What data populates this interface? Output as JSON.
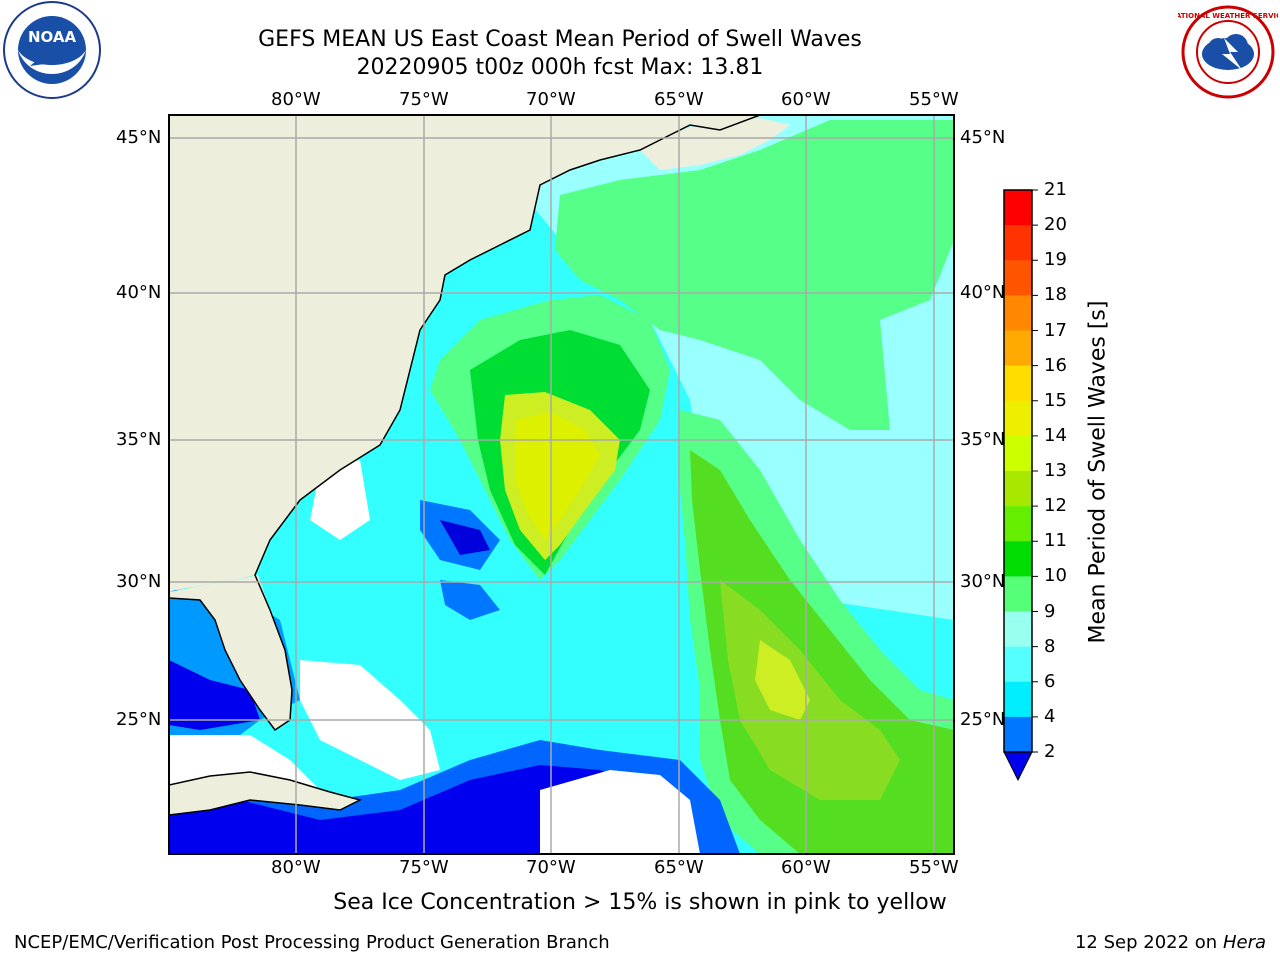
{
  "title_line1": "GEFS MEAN US East Coast Mean Period of Swell Waves",
  "title_line2": "20220905 t00z 000h fcst   Max: 13.81",
  "top_lon_labels": [
    "80°W",
    "75°W",
    "70°W",
    "65°W",
    "60°W",
    "55°W"
  ],
  "bottom_lon_labels": [
    "80°W",
    "75°W",
    "70°W",
    "65°W",
    "60°W",
    "55°W"
  ],
  "left_lat_labels": [
    "45°N",
    "40°N",
    "35°N",
    "30°N",
    "25°N"
  ],
  "right_lat_labels": [
    "45°N",
    "40°N",
    "35°N",
    "30°N",
    "25°N"
  ],
  "colorbar": {
    "title": "Mean Period of Swell Waves [s]",
    "ticks": [
      "21",
      "20",
      "19",
      "18",
      "17",
      "16",
      "15",
      "14",
      "13",
      "12",
      "11",
      "10",
      "9",
      "8",
      "6",
      "4",
      "2"
    ],
    "colors": [
      "#ff0000",
      "#ff3300",
      "#ff5500",
      "#ff8800",
      "#ffaa00",
      "#ffdd00",
      "#eeee00",
      "#ccff00",
      "#a8e800",
      "#66ee00",
      "#00dd00",
      "#55ff77",
      "#99ffee",
      "#55ffff",
      "#00eeff",
      "#0077ff",
      "#0000ee"
    ]
  },
  "note": "Sea Ice Concentration > 15% is shown in pink to yellow",
  "footer_left": "NCEP/EMC/Verification Post Processing Product Generation Branch",
  "footer_date": "12 Sep 2022 on",
  "footer_host": "Hera",
  "logos": {
    "left": "noaa-logo",
    "right": "national-weather-service-logo"
  }
}
